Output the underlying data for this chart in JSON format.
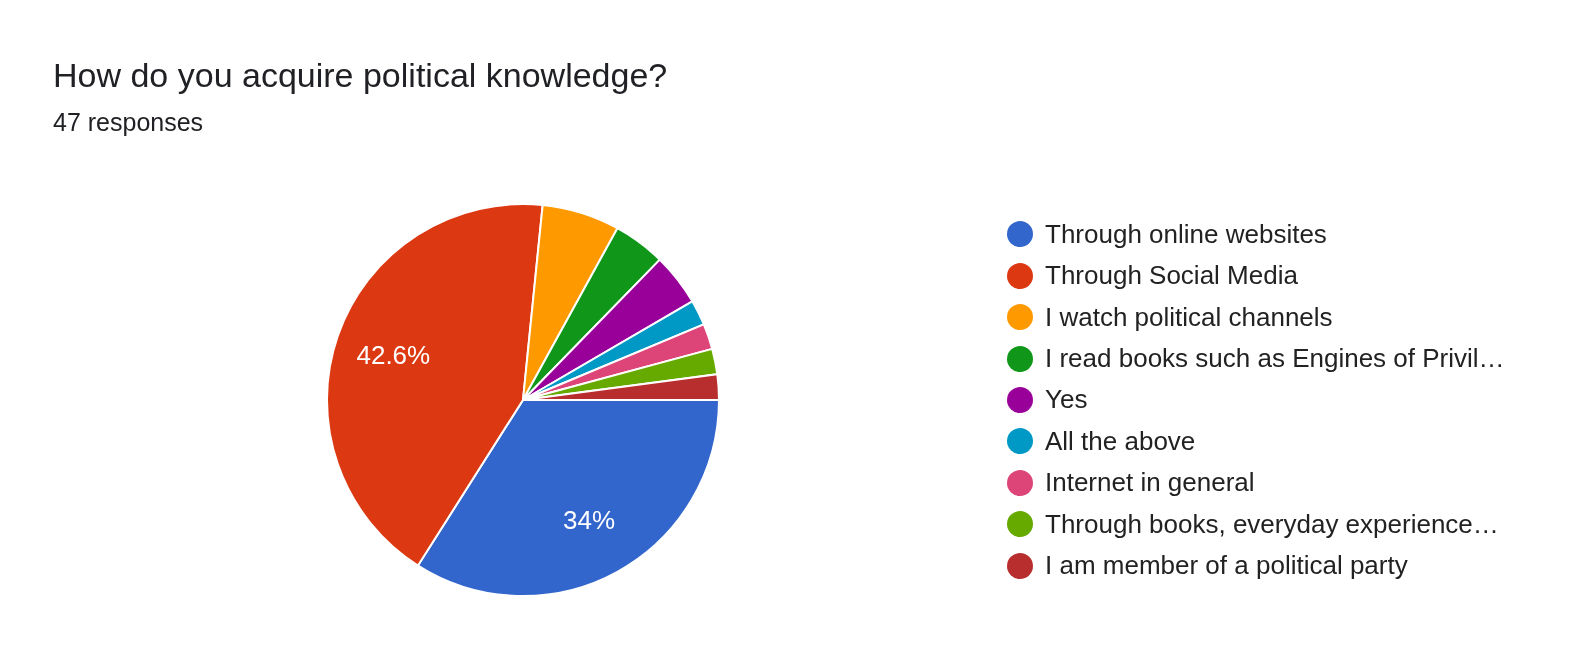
{
  "chart_data": {
    "type": "pie",
    "title": "How do you acquire political knowledge?",
    "subtitle": "47 responses",
    "categories": [
      "Through online websites",
      "Through Social Media",
      "I watch political channels",
      "I read books such as Engines of Privil…",
      "Yes",
      "All the above",
      "Internet in general",
      "Through books, everyday experience…",
      "I am member of a political party"
    ],
    "values": [
      34.0,
      42.6,
      6.4,
      4.3,
      4.3,
      2.1,
      2.1,
      2.1,
      2.1
    ],
    "colors": [
      "#3366cc",
      "#dc3912",
      "#ff9900",
      "#109618",
      "#990099",
      "#0099c6",
      "#dd4477",
      "#66aa00",
      "#b82e2e"
    ],
    "value_labels": [
      "34%",
      "42.6%",
      null,
      null,
      null,
      null,
      null,
      null,
      null
    ],
    "legend": "right"
  }
}
